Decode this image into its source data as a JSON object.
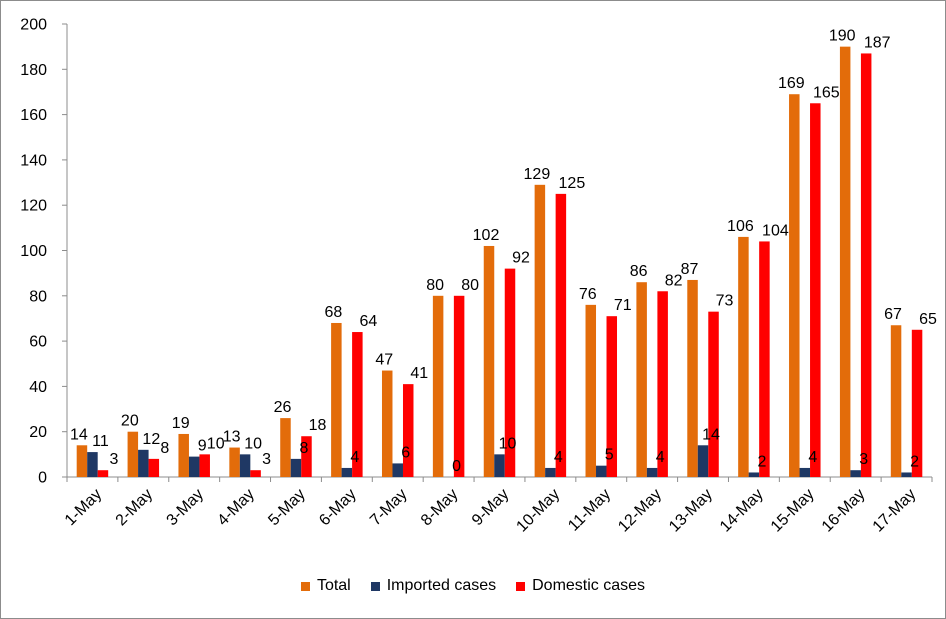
{
  "chart_data": {
    "type": "bar",
    "title": "",
    "xlabel": "",
    "ylabel": "",
    "ylim": [
      0,
      200
    ],
    "yticks": [
      0,
      20,
      40,
      60,
      80,
      100,
      120,
      140,
      160,
      180,
      200
    ],
    "grid": false,
    "legend_position": "bottom",
    "categories": [
      "1-May",
      "2-May",
      "3-May",
      "4-May",
      "5-May",
      "6-May",
      "7-May",
      "8-May",
      "9-May",
      "10-May",
      "11-May",
      "12-May",
      "13-May",
      "14-May",
      "15-May",
      "16-May",
      "17-May"
    ],
    "series": [
      {
        "name": "Total",
        "color": "#e36c0a",
        "values": [
          14,
          20,
          19,
          13,
          26,
          68,
          47,
          80,
          102,
          129,
          76,
          86,
          87,
          106,
          169,
          190,
          67
        ]
      },
      {
        "name": "Imported cases",
        "color": "#1f3864",
        "values": [
          11,
          12,
          9,
          10,
          8,
          4,
          6,
          0,
          10,
          4,
          5,
          4,
          14,
          2,
          4,
          3,
          2
        ]
      },
      {
        "name": "Domestic cases",
        "color": "#ff0000",
        "values": [
          3,
          8,
          10,
          3,
          18,
          64,
          41,
          80,
          92,
          125,
          71,
          82,
          73,
          104,
          165,
          187,
          65
        ]
      }
    ]
  }
}
